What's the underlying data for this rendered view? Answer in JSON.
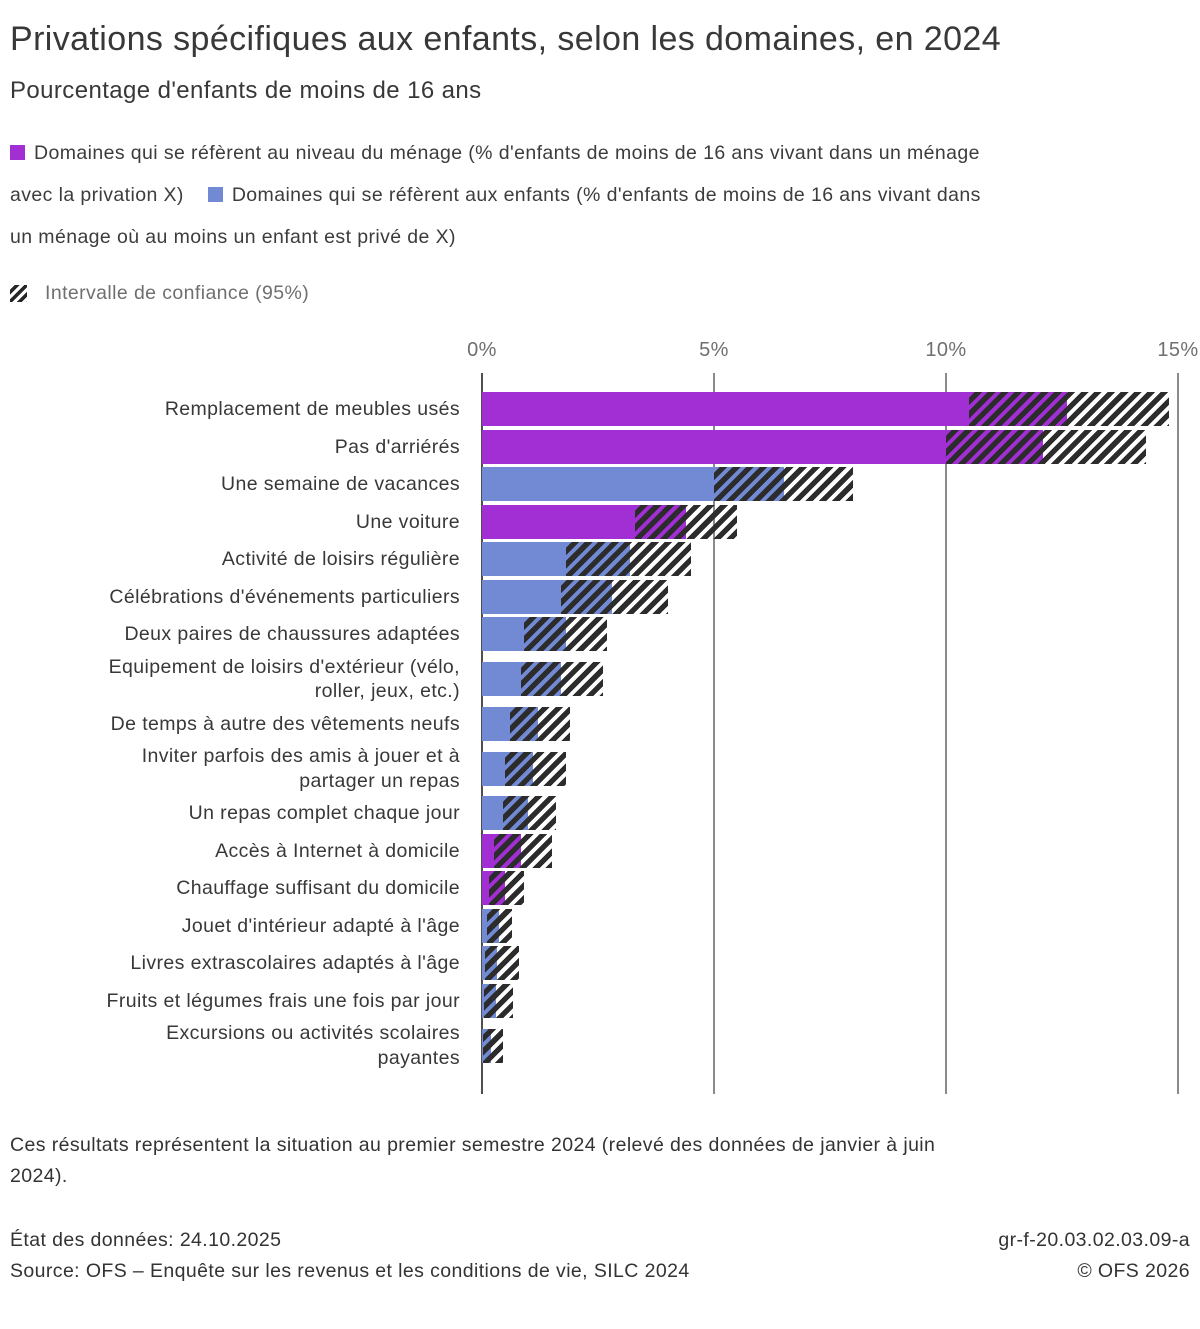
{
  "header": {
    "title": "Privations spécifiques aux enfants, selon les domaines, en 2024",
    "subtitle": "Pourcentage d'enfants de moins de 16 ans"
  },
  "legend": {
    "colors": {
      "menage": "#a22fd3",
      "enfants": "#7289d3"
    },
    "lines": [
      [
        {
          "swatch": "menage"
        },
        {
          "text": "Domaines qui se réfèrent au niveau du ménage (% d'enfants de moins de 16 ans vivant dans un ménage"
        }
      ],
      [
        {
          "text": "avec la privation X)"
        },
        {
          "swatch": "enfants",
          "second": true
        },
        {
          "text": "Domaines qui se réfèrent aux enfants (% d'enfants de moins de 16 ans vivant dans"
        }
      ],
      [
        {
          "text": "un ménage où au moins un enfant est privé de X)"
        }
      ]
    ],
    "ci_label": "Intervalle de confiance (95%)"
  },
  "chart_data": {
    "type": "bar",
    "orientation": "horizontal",
    "unit": "%",
    "title": "Privations spécifiques aux enfants, selon les domaines, en 2024",
    "xlabel": "Pourcentage d'enfants de moins de 16 ans",
    "xlim": [
      0,
      15.25
    ],
    "grid": true,
    "x_ticks": [
      {
        "value": 0,
        "label": "0%"
      },
      {
        "value": 5,
        "label": "5%"
      },
      {
        "value": 10,
        "label": "10%"
      },
      {
        "value": 15,
        "label": "15%"
      }
    ],
    "confidence_interval_note": "Intervalle de confiance (95%)",
    "bars": [
      {
        "label": "Remplacement de meubles usés",
        "label_lines": [
          "Remplacement de meubles usés"
        ],
        "group": "menage",
        "value": 12.6,
        "ci_low": 10.5,
        "ci_high": 14.8
      },
      {
        "label": "Pas d'arriérés",
        "label_lines": [
          "Pas d'arriérés"
        ],
        "group": "menage",
        "value": 12.1,
        "ci_low": 10.0,
        "ci_high": 14.3
      },
      {
        "label": "Une semaine de vacances",
        "label_lines": [
          "Une semaine de vacances"
        ],
        "group": "enfants",
        "value": 6.5,
        "ci_low": 5.0,
        "ci_high": 8.0
      },
      {
        "label": "Une voiture",
        "label_lines": [
          "Une voiture"
        ],
        "group": "menage",
        "value": 4.4,
        "ci_low": 3.3,
        "ci_high": 5.5
      },
      {
        "label": "Activité de loisirs régulière",
        "label_lines": [
          "Activité de loisirs régulière"
        ],
        "group": "enfants",
        "value": 3.2,
        "ci_low": 1.8,
        "ci_high": 4.5
      },
      {
        "label": "Célébrations d'événements particuliers",
        "label_lines": [
          "Célébrations d'événements particuliers"
        ],
        "group": "enfants",
        "value": 2.8,
        "ci_low": 1.7,
        "ci_high": 4.0
      },
      {
        "label": "Deux paires de chaussures adaptées",
        "label_lines": [
          "Deux paires de chaussures adaptées"
        ],
        "group": "enfants",
        "value": 1.8,
        "ci_low": 0.9,
        "ci_high": 2.7
      },
      {
        "label": "Equipement de loisirs d'extérieur (vélo, roller, jeux, etc.)",
        "label_lines": [
          "Equipement de loisirs d'extérieur (vélo,",
          "roller, jeux, etc.)"
        ],
        "group": "enfants",
        "value": 1.7,
        "ci_low": 0.85,
        "ci_high": 2.6
      },
      {
        "label": "De temps à autre des vêtements neufs",
        "label_lines": [
          "De temps à autre des vêtements neufs"
        ],
        "group": "enfants",
        "value": 1.2,
        "ci_low": 0.6,
        "ci_high": 1.9
      },
      {
        "label": "Inviter parfois des amis à jouer et à partager un repas",
        "label_lines": [
          "Inviter parfois des amis à jouer et à",
          "partager un repas"
        ],
        "group": "enfants",
        "value": 1.1,
        "ci_low": 0.5,
        "ci_high": 1.8
      },
      {
        "label": "Un repas complet chaque jour",
        "label_lines": [
          "Un repas complet chaque jour"
        ],
        "group": "enfants",
        "value": 1.0,
        "ci_low": 0.45,
        "ci_high": 1.6
      },
      {
        "label": "Accès à Internet à domicile",
        "label_lines": [
          "Accès à Internet à domicile"
        ],
        "group": "menage",
        "value": 0.85,
        "ci_low": 0.25,
        "ci_high": 1.5
      },
      {
        "label": "Chauffage suffisant du domicile",
        "label_lines": [
          "Chauffage suffisant du domicile"
        ],
        "group": "menage",
        "value": 0.5,
        "ci_low": 0.15,
        "ci_high": 0.9
      },
      {
        "label": "Jouet d'intérieur adapté à l'âge",
        "label_lines": [
          "Jouet d'intérieur adapté à l'âge"
        ],
        "group": "enfants",
        "value": 0.37,
        "ci_low": 0.1,
        "ci_high": 0.65
      },
      {
        "label": "Livres extrascolaires adaptés à l'âge",
        "label_lines": [
          "Livres extrascolaires adaptés à l'âge"
        ],
        "group": "enfants",
        "value": 0.33,
        "ci_low": 0.07,
        "ci_high": 0.8
      },
      {
        "label": "Fruits et légumes frais une fois par jour",
        "label_lines": [
          "Fruits et légumes frais une fois par jour"
        ],
        "group": "enfants",
        "value": 0.3,
        "ci_low": 0.05,
        "ci_high": 0.67
      },
      {
        "label": "Excursions ou activités scolaires payantes",
        "label_lines": [
          "Excursions ou activités scolaires",
          "payantes"
        ],
        "group": "enfants",
        "value": 0.2,
        "ci_low": 0.03,
        "ci_high": 0.46
      }
    ]
  },
  "footnote": {
    "lines": [
      "Ces résultats représentent la situation au premier semestre 2024 (relevé des données de janvier à juin",
      "2024)."
    ]
  },
  "footer": {
    "status": "État des données: 24.10.2025",
    "reference": "gr-f-20.03.02.03.09-a",
    "source": "Source: OFS – Enquête sur les revenus et les conditions de vie, SILC 2024",
    "copyright": "© OFS 2026"
  }
}
